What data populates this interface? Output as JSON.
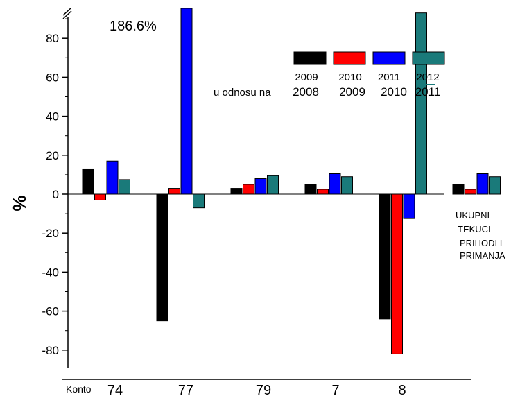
{
  "chart_data": {
    "type": "bar",
    "ylabel": "%",
    "xlabel_prefix": "Konto",
    "categories": [
      "74",
      "77",
      "79",
      "7",
      "8",
      ""
    ],
    "series": [
      {
        "name": "2009",
        "color": "#000000",
        "values": [
          13,
          -65,
          3,
          5,
          -64,
          5
        ]
      },
      {
        "name": "2010",
        "color": "#ff0000",
        "values": [
          -3,
          3,
          5,
          2.5,
          -82,
          2.5
        ]
      },
      {
        "name": "2011",
        "color": "#0000ff",
        "values": [
          17,
          186.6,
          8,
          10.5,
          -12.5,
          10.5
        ]
      },
      {
        "name": "2012",
        "color": "#1a7a7a",
        "values": [
          7.5,
          -7,
          9.5,
          9,
          93,
          9
        ]
      }
    ],
    "ylim": [
      -90,
      95
    ],
    "yticks": [
      -80,
      -60,
      -40,
      -20,
      0,
      20,
      40,
      60,
      80
    ],
    "axis_break": true,
    "break_annotation": "186.6%",
    "legend": {
      "placement": "top-right",
      "relation_label": "u odnosu na",
      "base_years": [
        "2008",
        "2009",
        "2010",
        "2011"
      ]
    },
    "annotation_lines": [
      "UKUPNI",
      "TEKUCI",
      "PRIHODI I",
      "PRIMANJA"
    ]
  }
}
